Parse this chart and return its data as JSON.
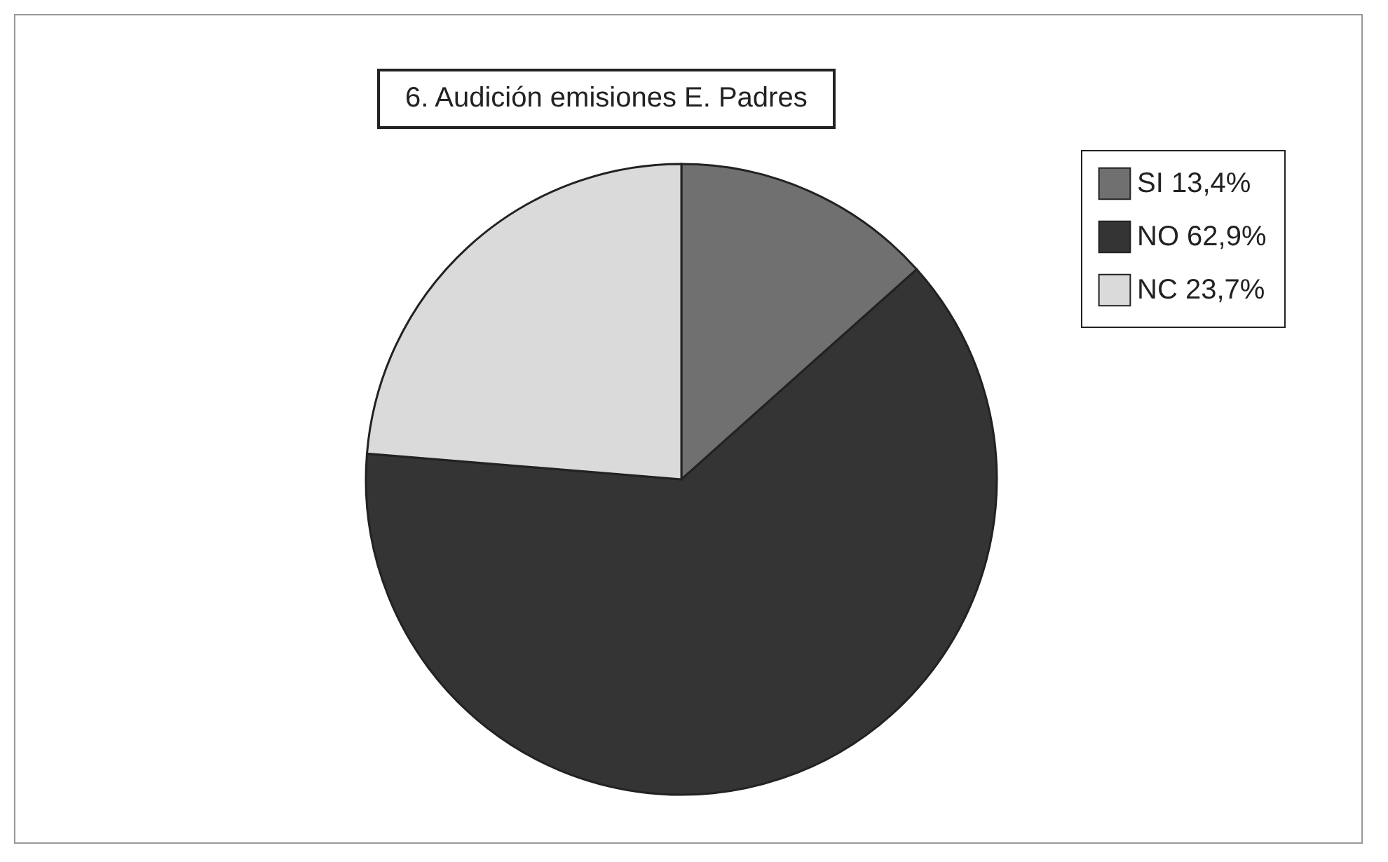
{
  "chart_data": {
    "type": "pie",
    "title": "6. Audición emisiones E. Padres",
    "categories": [
      "SI 13,4%",
      "NO 62,9%",
      "NC 23,7%"
    ],
    "values": [
      13.4,
      62.9,
      23.7
    ],
    "colors": [
      "#707070",
      "#343434",
      "#dadada"
    ],
    "legend": "top right"
  }
}
